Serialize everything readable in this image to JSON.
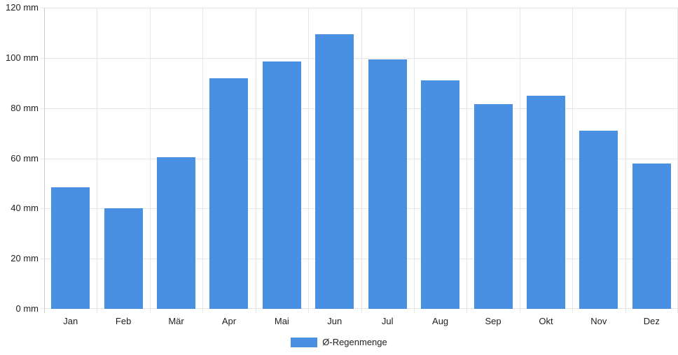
{
  "chart_data": {
    "type": "bar",
    "title": "",
    "xlabel": "",
    "ylabel": "",
    "categories": [
      "Jan",
      "Feb",
      "Mär",
      "Apr",
      "Mai",
      "Jun",
      "Jul",
      "Aug",
      "Sep",
      "Okt",
      "Nov",
      "Dez"
    ],
    "values": [
      48.5,
      40,
      60.5,
      92,
      98.5,
      109.5,
      99.5,
      91,
      81.5,
      85,
      71,
      58
    ],
    "series_name": "Ø-Regenmenge",
    "unit": "mm",
    "ylim": [
      0,
      120
    ],
    "y_ticks": [
      {
        "value": 0,
        "label": "0 mm"
      },
      {
        "value": 20,
        "label": "20 mm"
      },
      {
        "value": 40,
        "label": "40 mm"
      },
      {
        "value": 60,
        "label": "60 mm"
      },
      {
        "value": 80,
        "label": "80 mm"
      },
      {
        "value": 100,
        "label": "100 mm"
      },
      {
        "value": 120,
        "label": "120 mm"
      }
    ],
    "grid": true,
    "legend_position": "bottom"
  },
  "colors": {
    "bar": "#4a90e2",
    "grid": "#e6e6e6",
    "axis": "#cccccc",
    "text": "#222222",
    "background": "#ffffff"
  }
}
